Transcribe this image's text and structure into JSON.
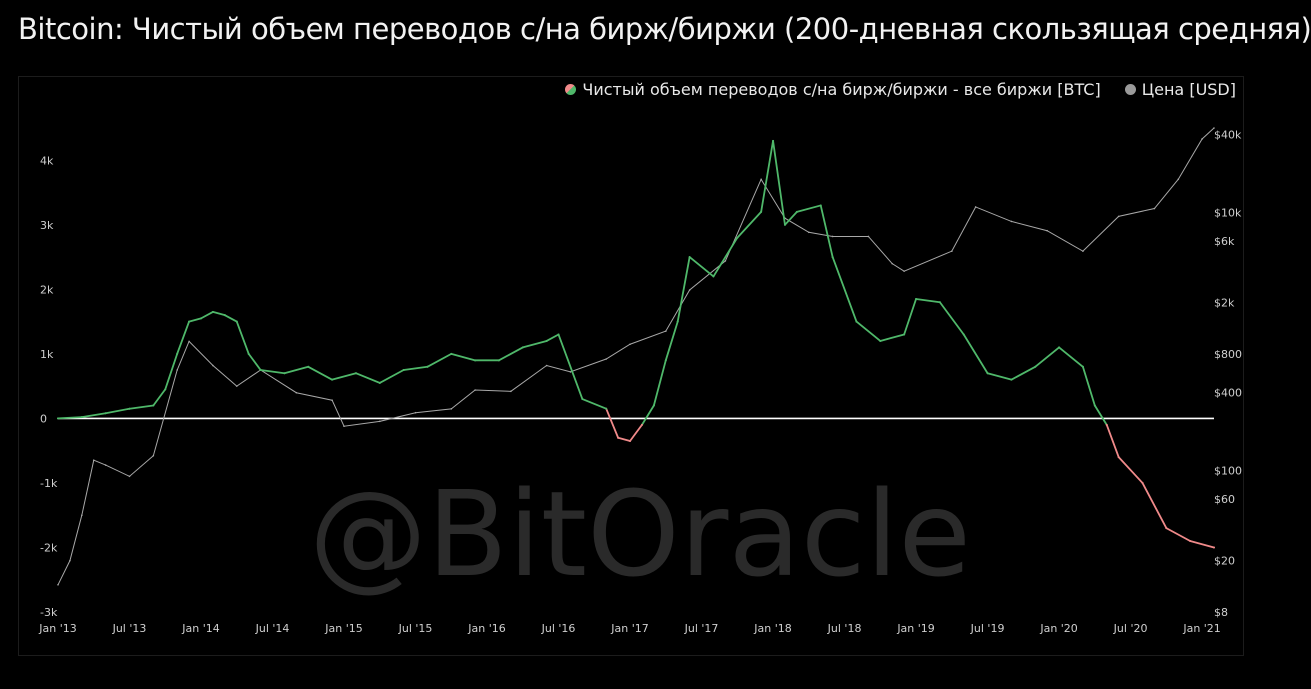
{
  "title": "Bitcoin: Чистый объем переводов с/на бирж/биржи (200-дневная скользящая средняя)",
  "watermark": "@BitOracle",
  "legend": {
    "net": "Чистый объем переводов с/на бирж/биржи - все биржи [BTC]",
    "price": "Цена [USD]"
  },
  "colors": {
    "positive": "#4fb86a",
    "negative": "#f08a8a",
    "price": "#a8a8a8",
    "zero_line": "#ffffff"
  },
  "chart_data": {
    "type": "line",
    "title": "Bitcoin: Чистый объем переводов с/на бирж/биржи (200-дневная скользящая средняя)",
    "x_tick_labels": [
      "Jan '13",
      "Jul '13",
      "Jan '14",
      "Jul '14",
      "Jan '15",
      "Jul '15",
      "Jan '16",
      "Jul '16",
      "Jan '17",
      "Jul '17",
      "Jan '18",
      "Jul '18",
      "Jan '19",
      "Jul '19",
      "Jan '20",
      "Jul '20",
      "Jan '21"
    ],
    "xlim": [
      "2013-01",
      "2021-02"
    ],
    "y_left": {
      "ylim": [
        -3000,
        4500
      ],
      "tick_values": [
        -3000,
        -2000,
        -1000,
        0,
        1000,
        2000,
        3000,
        4000
      ],
      "tick_labels": [
        "-3k",
        "-2k",
        "-1k",
        "0",
        "1k",
        "2k",
        "3k",
        "4k"
      ]
    },
    "y_right": {
      "scale": "log",
      "ylim": [
        8,
        45000
      ],
      "tick_values": [
        8,
        20,
        60,
        100,
        400,
        800,
        2000,
        6000,
        10000,
        40000
      ],
      "tick_labels": [
        "$8",
        "$20",
        "$60",
        "$100",
        "$400",
        "$800",
        "$2k",
        "$6k",
        "$10k",
        "$40k"
      ]
    },
    "series": [
      {
        "name": "Чистый объем переводов с/на бирж/биржи - все биржи [BTC]",
        "axis": "left",
        "x": [
          "2013-01",
          "2013-03",
          "2013-05",
          "2013-07",
          "2013-09",
          "2013-10",
          "2013-11",
          "2013-12",
          "2014-01",
          "2014-02",
          "2014-03",
          "2014-04",
          "2014-05",
          "2014-06",
          "2014-08",
          "2014-10",
          "2014-12",
          "2015-02",
          "2015-04",
          "2015-06",
          "2015-08",
          "2015-10",
          "2015-12",
          "2016-02",
          "2016-04",
          "2016-06",
          "2016-07",
          "2016-09",
          "2016-11",
          "2016-12",
          "2017-01",
          "2017-02",
          "2017-03",
          "2017-04",
          "2017-05",
          "2017-06",
          "2017-08",
          "2017-10",
          "2017-12",
          "2018-01",
          "2018-02",
          "2018-03",
          "2018-05",
          "2018-06",
          "2018-08",
          "2018-10",
          "2018-12",
          "2019-01",
          "2019-03",
          "2019-05",
          "2019-07",
          "2019-09",
          "2019-11",
          "2020-01",
          "2020-03",
          "2020-04",
          "2020-05",
          "2020-06",
          "2020-08",
          "2020-10",
          "2020-12",
          "2021-02"
        ],
        "y": [
          0,
          20,
          80,
          150,
          200,
          450,
          1000,
          1500,
          1550,
          1650,
          1600,
          1500,
          1000,
          750,
          700,
          800,
          600,
          700,
          550,
          750,
          800,
          1000,
          900,
          900,
          1100,
          1200,
          1300,
          300,
          150,
          -300,
          -350,
          -100,
          200,
          900,
          1500,
          2500,
          2200,
          2800,
          3200,
          4300,
          3000,
          3200,
          3300,
          2500,
          1500,
          1200,
          1300,
          1850,
          1800,
          1300,
          700,
          600,
          800,
          1100,
          800,
          200,
          -100,
          -600,
          -1000,
          -1700,
          -1900,
          -2000
        ]
      },
      {
        "name": "Цена [USD]",
        "axis": "right",
        "x": [
          "2013-01",
          "2013-02",
          "2013-03",
          "2013-04",
          "2013-05",
          "2013-07",
          "2013-09",
          "2013-11",
          "2013-12",
          "2014-02",
          "2014-04",
          "2014-06",
          "2014-09",
          "2014-12",
          "2015-01",
          "2015-04",
          "2015-07",
          "2015-10",
          "2015-12",
          "2016-03",
          "2016-06",
          "2016-08",
          "2016-11",
          "2017-01",
          "2017-04",
          "2017-06",
          "2017-09",
          "2017-12",
          "2018-02",
          "2018-04",
          "2018-06",
          "2018-09",
          "2018-11",
          "2018-12",
          "2019-04",
          "2019-06",
          "2019-09",
          "2019-12",
          "2020-03",
          "2020-06",
          "2020-09",
          "2020-11",
          "2021-01",
          "2021-02"
        ],
        "y": [
          13,
          20,
          45,
          120,
          110,
          90,
          130,
          600,
          1000,
          650,
          450,
          600,
          400,
          350,
          220,
          240,
          280,
          300,
          420,
          410,
          650,
          580,
          730,
          950,
          1200,
          2500,
          4200,
          18000,
          9000,
          7000,
          6500,
          6500,
          4000,
          3500,
          5000,
          11000,
          8500,
          7200,
          5000,
          9300,
          10700,
          18000,
          37000,
          45000
        ]
      }
    ]
  }
}
